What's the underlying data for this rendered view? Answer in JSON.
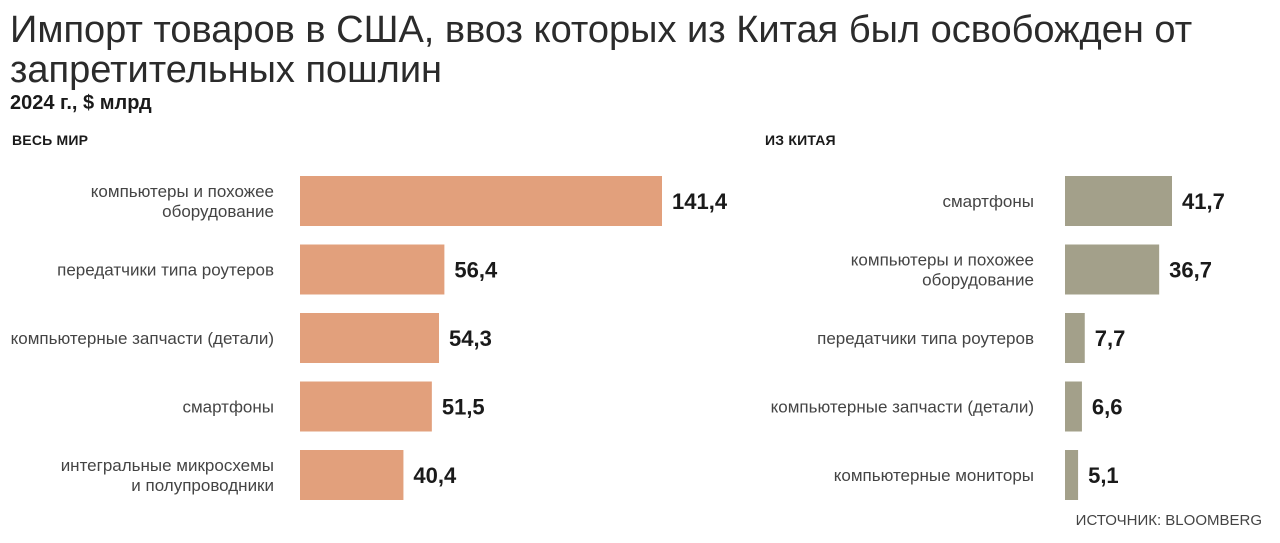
{
  "header": {
    "title": "Импорт товаров в США, ввоз которых из Китая был освобожден от запретительных пошлин",
    "subtitle": "2024 г., $ млрд"
  },
  "source": "ИСТОЧНИК: BLOOMBERG",
  "colors": {
    "world": "#e2a07c",
    "china": "#a3a08a"
  },
  "chart_data": [
    {
      "type": "bar",
      "orientation": "horizontal",
      "title": "ВЕСЬ МИР",
      "categories": [
        [
          "компьютеры и похожее",
          "оборудование"
        ],
        [
          "передатчики типа роутеров"
        ],
        [
          "компьютерные запчасти (детали)"
        ],
        [
          "смартфоны"
        ],
        [
          "интегральные микросхемы",
          "и полупроводники"
        ]
      ],
      "values": [
        141.4,
        56.4,
        54.3,
        51.5,
        40.4
      ],
      "value_labels": [
        "141,4",
        "56,4",
        "54,3",
        "51,5",
        "40,4"
      ]
    },
    {
      "type": "bar",
      "orientation": "horizontal",
      "title": "ИЗ КИТАЯ",
      "categories": [
        [
          "смартфоны"
        ],
        [
          "компьютеры и похожее",
          "оборудование"
        ],
        [
          "передатчики типа роутеров"
        ],
        [
          "компьютерные запчасти (детали)"
        ],
        [
          "компьютерные мониторы"
        ]
      ],
      "values": [
        41.7,
        36.7,
        7.7,
        6.6,
        5.1
      ],
      "value_labels": [
        "41,7",
        "36,7",
        "7,7",
        "6,6",
        "5,1"
      ]
    }
  ]
}
